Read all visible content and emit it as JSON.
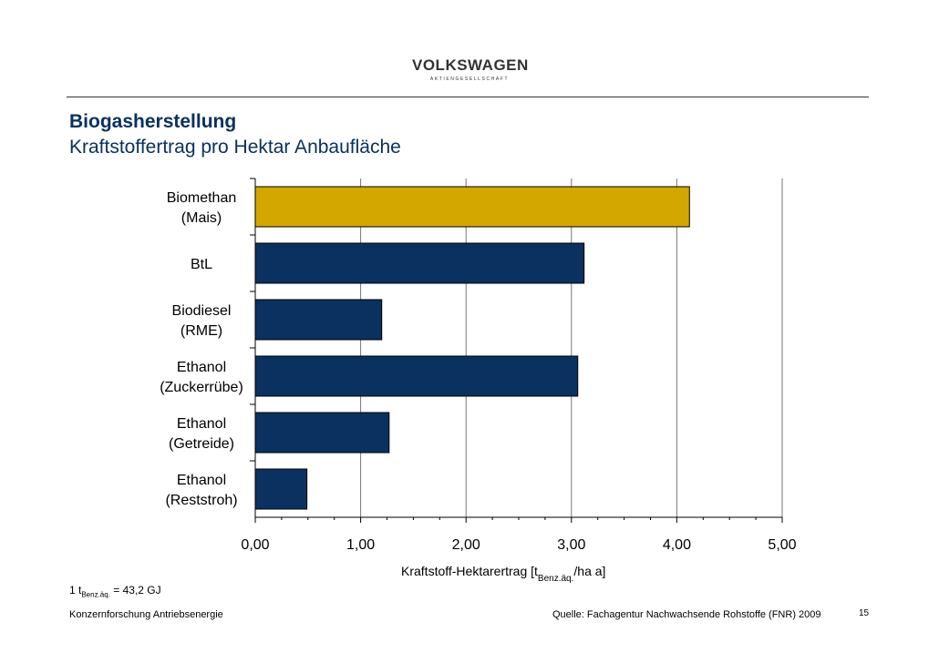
{
  "header": {
    "brand_name": "VOLKSWAGEN",
    "brand_sub": "AKTIENGESELLSCHAFT",
    "title": "Biogasherstellung",
    "subtitle": "Kraftstoffertrag pro Hektar Anbaufläche"
  },
  "chart_data": {
    "type": "bar",
    "orientation": "horizontal",
    "categories": [
      [
        "Biomethan",
        "(Mais)"
      ],
      [
        "BtL"
      ],
      [
        "Biodiesel",
        "(RME)"
      ],
      [
        "Ethanol",
        "(Zuckerrübe)"
      ],
      [
        "Ethanol",
        "(Getreide)"
      ],
      [
        "Ethanol",
        "(Reststroh)"
      ]
    ],
    "values": [
      4.12,
      3.12,
      1.2,
      3.06,
      1.27,
      0.49
    ],
    "bar_colors": [
      "#d4a600",
      "#0a3160",
      "#0a3160",
      "#0a3160",
      "#0a3160",
      "#0a3160"
    ],
    "xlim": [
      0,
      5
    ],
    "ticks": [
      "0,00",
      "1,00",
      "2,00",
      "3,00",
      "4,00",
      "5,00"
    ],
    "xlabel": "Kraftstoff-Hektarertrag [t",
    "xlabel_sub": "Benz.äq.",
    "xlabel_tail": "/ha a]",
    "grid": true
  },
  "footer": {
    "conversion_prefix": "1 t",
    "conversion_sub": "Benz.äq.",
    "conversion_suffix": " = 43,2 GJ",
    "org": "Konzernforschung Antriebsenergie",
    "source": "Quelle: Fachagentur Nachwachsende Rohstoffe (FNR) 2009",
    "page_number": "15"
  }
}
